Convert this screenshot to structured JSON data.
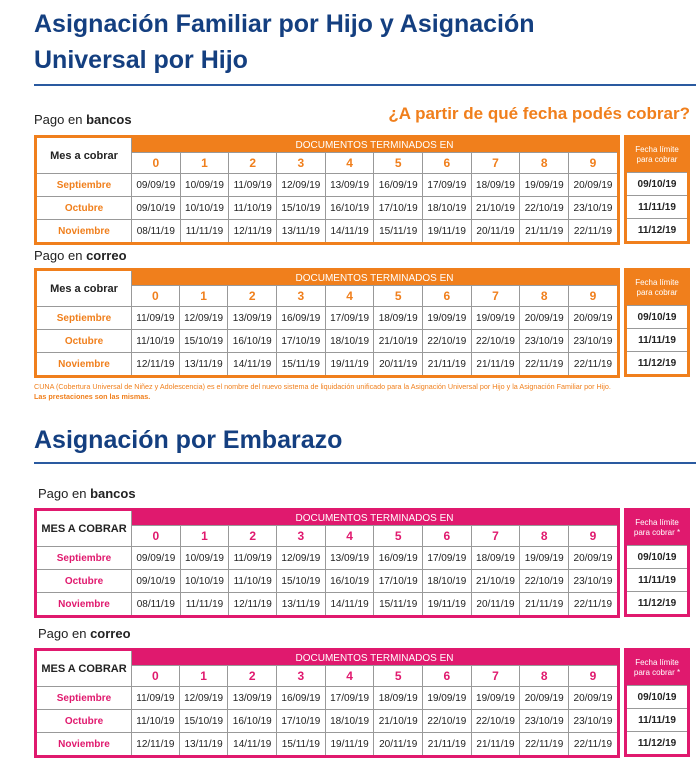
{
  "sections": [
    {
      "title": "Asignación Familiar por Hijo y Asignación Universal por Hijo",
      "subtitle": "¿A partir de qué fecha podés cobrar?",
      "tables": [
        {
          "label_prefix": "Pago en",
          "label_bold": "bancos",
          "month_header": "Mes a cobrar",
          "docs_header": "DOCUMENTOS TERMINADOS EN",
          "digits": [
            0,
            1,
            2,
            3,
            4,
            5,
            6,
            7,
            8,
            9
          ],
          "limit_header": "Fecha límite para cobrar",
          "rows": [
            {
              "month": "Septiembre",
              "dates": [
                "09/09/19",
                "10/09/19",
                "11/09/19",
                "12/09/19",
                "13/09/19",
                "16/09/19",
                "17/09/19",
                "18/09/19",
                "19/09/19",
                "20/09/19"
              ],
              "limit": "09/10/19"
            },
            {
              "month": "Octubre",
              "dates": [
                "09/10/19",
                "10/10/19",
                "11/10/19",
                "15/10/19",
                "16/10/19",
                "17/10/19",
                "18/10/19",
                "21/10/19",
                "22/10/19",
                "23/10/19"
              ],
              "limit": "11/11/19"
            },
            {
              "month": "Noviembre",
              "dates": [
                "08/11/19",
                "11/11/19",
                "12/11/19",
                "13/11/19",
                "14/11/19",
                "15/11/19",
                "19/11/19",
                "20/11/19",
                "21/11/19",
                "22/11/19"
              ],
              "limit": "11/12/19"
            }
          ]
        },
        {
          "label_prefix": "Pago en",
          "label_bold": "correo",
          "month_header": "Mes a cobrar",
          "docs_header": "DOCUMENTOS TERMINADOS EN",
          "digits": [
            0,
            1,
            2,
            3,
            4,
            5,
            6,
            7,
            8,
            9
          ],
          "limit_header": "Fecha límite para cobrar",
          "rows": [
            {
              "month": "Septiembre",
              "dates": [
                "11/09/19",
                "12/09/19",
                "13/09/19",
                "16/09/19",
                "17/09/19",
                "18/09/19",
                "19/09/19",
                "19/09/19",
                "20/09/19",
                "20/09/19"
              ],
              "limit": "09/10/19"
            },
            {
              "month": "Octubre",
              "dates": [
                "11/10/19",
                "15/10/19",
                "16/10/19",
                "17/10/19",
                "18/10/19",
                "21/10/19",
                "22/10/19",
                "22/10/19",
                "23/10/19",
                "23/10/19"
              ],
              "limit": "11/11/19"
            },
            {
              "month": "Noviembre",
              "dates": [
                "12/11/19",
                "13/11/19",
                "14/11/19",
                "15/11/19",
                "19/11/19",
                "20/11/19",
                "21/11/19",
                "21/11/19",
                "22/11/19",
                "22/11/19"
              ],
              "limit": "11/12/19"
            }
          ]
        }
      ],
      "footnote": "CUNA (Cobertura Universal de Niñez y Adolescencia) es el nombre del nuevo sistema de liquidación unificado para la Asignación Universal por Hijo y la Asignación Familiar por Hijo.",
      "footnote_bold": "Las prestaciones son las mismas."
    },
    {
      "title": "Asignación por Embarazo",
      "tables": [
        {
          "label_prefix": "Pago en",
          "label_bold": "bancos",
          "month_header": "MES A COBRAR",
          "docs_header": "DOCUMENTOS TERMINADOS EN",
          "digits": [
            0,
            1,
            2,
            3,
            4,
            5,
            6,
            7,
            8,
            9
          ],
          "limit_header": "Fecha límite para cobrar *",
          "rows": [
            {
              "month": "Septiembre",
              "dates": [
                "09/09/19",
                "10/09/19",
                "11/09/19",
                "12/09/19",
                "13/09/19",
                "16/09/19",
                "17/09/19",
                "18/09/19",
                "19/09/19",
                "20/09/19"
              ],
              "limit": "09/10/19"
            },
            {
              "month": "Octubre",
              "dates": [
                "09/10/19",
                "10/10/19",
                "11/10/19",
                "15/10/19",
                "16/10/19",
                "17/10/19",
                "18/10/19",
                "21/10/19",
                "22/10/19",
                "23/10/19"
              ],
              "limit": "11/11/19"
            },
            {
              "month": "Noviembre",
              "dates": [
                "08/11/19",
                "11/11/19",
                "12/11/19",
                "13/11/19",
                "14/11/19",
                "15/11/19",
                "19/11/19",
                "20/11/19",
                "21/11/19",
                "22/11/19"
              ],
              "limit": "11/12/19"
            }
          ]
        },
        {
          "label_prefix": "Pago en",
          "label_bold": "correo",
          "month_header": "MES A COBRAR",
          "docs_header": "DOCUMENTOS TERMINADOS EN",
          "digits": [
            0,
            1,
            2,
            3,
            4,
            5,
            6,
            7,
            8,
            9
          ],
          "limit_header": "Fecha límite para cobrar *",
          "rows": [
            {
              "month": "Septiembre",
              "dates": [
                "11/09/19",
                "12/09/19",
                "13/09/19",
                "16/09/19",
                "17/09/19",
                "18/09/19",
                "19/09/19",
                "19/09/19",
                "20/09/19",
                "20/09/19"
              ],
              "limit": "09/10/19"
            },
            {
              "month": "Octubre",
              "dates": [
                "11/10/19",
                "15/10/19",
                "16/10/19",
                "17/10/19",
                "18/10/19",
                "21/10/19",
                "22/10/19",
                "22/10/19",
                "23/10/19",
                "23/10/19"
              ],
              "limit": "11/11/19"
            },
            {
              "month": "Noviembre",
              "dates": [
                "12/11/19",
                "13/11/19",
                "14/11/19",
                "15/11/19",
                "19/11/19",
                "20/11/19",
                "21/11/19",
                "21/11/19",
                "22/11/19",
                "22/11/19"
              ],
              "limit": "11/12/19"
            }
          ]
        }
      ]
    }
  ]
}
